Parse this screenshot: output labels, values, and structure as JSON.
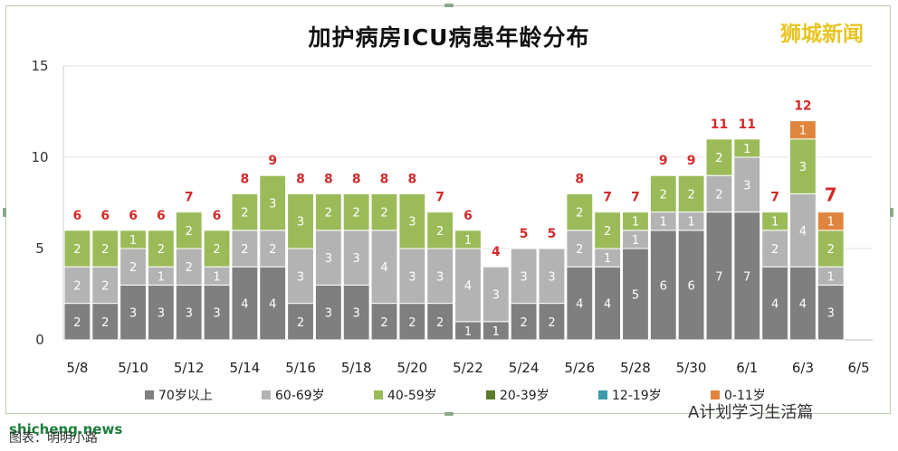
{
  "chart_data": {
    "type": "bar",
    "title": "加护病房ICU病患年龄分布",
    "xlabel": "",
    "ylabel": "",
    "ylim": [
      0,
      15
    ],
    "yticks": [
      0,
      5,
      10,
      15
    ],
    "grid": true,
    "legend_position": "bottom",
    "categories": [
      "5/8",
      "5/9",
      "5/10",
      "5/11",
      "5/12",
      "5/13",
      "5/14",
      "5/15",
      "5/16",
      "5/17",
      "5/18",
      "5/19",
      "5/20",
      "5/21",
      "5/22",
      "5/23",
      "5/24",
      "5/25",
      "5/26",
      "5/27",
      "5/28",
      "5/29",
      "5/30",
      "5/31",
      "6/1",
      "6/2",
      "6/3",
      "6/4",
      "6/5"
    ],
    "x_tick_labels": [
      "5/8",
      "",
      "5/10",
      "",
      "5/12",
      "",
      "5/14",
      "",
      "5/16",
      "",
      "5/18",
      "",
      "5/20",
      "",
      "5/22",
      "",
      "5/24",
      "",
      "5/26",
      "",
      "5/28",
      "",
      "5/30",
      "",
      "6/1",
      "",
      "6/3",
      "",
      "6/5"
    ],
    "totals": [
      6,
      6,
      6,
      6,
      7,
      6,
      8,
      9,
      8,
      8,
      8,
      8,
      8,
      7,
      6,
      4,
      5,
      5,
      8,
      7,
      7,
      9,
      9,
      11,
      11,
      7,
      12,
      7,
      null
    ],
    "series": [
      {
        "name": "70岁以上",
        "color": "#7f7f7f",
        "values": [
          2,
          2,
          3,
          3,
          3,
          3,
          4,
          4,
          2,
          3,
          3,
          2,
          2,
          2,
          1,
          1,
          2,
          2,
          4,
          4,
          5,
          6,
          6,
          7,
          7,
          4,
          4,
          3,
          0
        ]
      },
      {
        "name": "60-69岁",
        "color": "#b3b3b3",
        "values": [
          2,
          2,
          2,
          1,
          2,
          1,
          2,
          2,
          3,
          3,
          3,
          4,
          3,
          3,
          4,
          3,
          3,
          3,
          2,
          1,
          1,
          1,
          1,
          2,
          3,
          2,
          4,
          1,
          0
        ]
      },
      {
        "name": "40-59岁",
        "color": "#9bbb59",
        "values": [
          2,
          2,
          1,
          2,
          2,
          2,
          2,
          3,
          3,
          2,
          2,
          2,
          3,
          2,
          1,
          0,
          0,
          0,
          2,
          2,
          1,
          2,
          2,
          2,
          1,
          1,
          3,
          2,
          0
        ]
      },
      {
        "name": "20-39岁",
        "color": "#5e7a2e",
        "values": [
          0,
          0,
          0,
          0,
          0,
          0,
          0,
          0,
          0,
          0,
          0,
          0,
          0,
          0,
          0,
          0,
          0,
          0,
          0,
          0,
          0,
          0,
          0,
          0,
          0,
          0,
          0,
          0,
          0
        ]
      },
      {
        "name": "12-19岁",
        "color": "#3a9aaa",
        "values": [
          0,
          0,
          0,
          0,
          0,
          0,
          0,
          0,
          0,
          0,
          0,
          0,
          0,
          0,
          0,
          0,
          0,
          0,
          0,
          0,
          0,
          0,
          0,
          0,
          0,
          0,
          0,
          0,
          0
        ]
      },
      {
        "name": "0-11岁",
        "color": "#e0853d",
        "values": [
          0,
          0,
          0,
          0,
          0,
          0,
          0,
          0,
          0,
          0,
          0,
          0,
          0,
          0,
          0,
          0,
          0,
          0,
          0,
          0,
          0,
          0,
          0,
          0,
          0,
          0,
          1,
          1,
          0
        ]
      }
    ]
  },
  "brand": "狮城新闻",
  "watermark": "shicheng.news",
  "caption": "图表：明明小路",
  "wechat_account": "A计划学习生活篇"
}
